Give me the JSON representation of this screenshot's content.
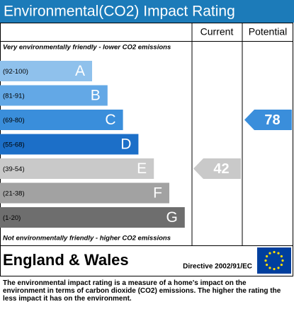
{
  "header": {
    "title": "Environmental(CO2) Impact Rating"
  },
  "columns": {
    "current": "Current",
    "potential": "Potential"
  },
  "top_note": "Very environmentally friendly - lower CO2 emissions",
  "bottom_note": "Not environmentally friendly - higher CO2 emissions",
  "bands": [
    {
      "range": "(92-100)",
      "letter": "A",
      "color": "#8fc1ec"
    },
    {
      "range": "(81-91)",
      "letter": "B",
      "color": "#63a8e6"
    },
    {
      "range": "(69-80)",
      "letter": "C",
      "color": "#3a8edb"
    },
    {
      "range": "(55-68)",
      "letter": "D",
      "color": "#1c6fc8"
    },
    {
      "range": "(39-54)",
      "letter": "E",
      "color": "#c9c9c9"
    },
    {
      "range": "(21-38)",
      "letter": "F",
      "color": "#a2a2a2"
    },
    {
      "range": "(1-20)",
      "letter": "G",
      "color": "#6e6e6e"
    }
  ],
  "current": {
    "value": 42
  },
  "potential": {
    "value": 78
  },
  "footer": {
    "country": "England & Wales",
    "directive": "Directive 2002/91/EC"
  },
  "description": "The environmental impact rating is a measure of a home's impact on the environment in terms of carbon dioxide (CO2) emissions. The higher the rating the less impact it has on the environment."
}
